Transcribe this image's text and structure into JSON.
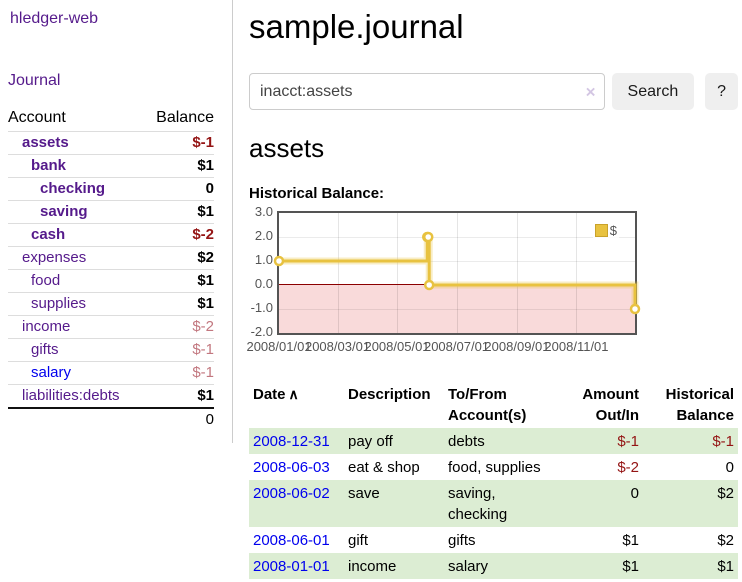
{
  "app": {
    "title": "hledger-web"
  },
  "colors": {
    "link_purple": "#551A8B",
    "link_blue": "#0000EE",
    "negative": "#941414",
    "muted_negative": "#c2777f",
    "row_green": "#dcedd3",
    "chart_series_yellow": "#E8C240",
    "chart_negative_region": "#f9dada",
    "chart_zero_line": "#8b0000"
  },
  "sidebar": {
    "nav": {
      "journal_label": "Journal"
    },
    "accounts_table": {
      "headers": {
        "account": "Account",
        "balance": "Balance"
      },
      "rows": [
        {
          "name": "assets",
          "balance": "$-1",
          "depth": 1,
          "bold": true,
          "balance_color": "negative"
        },
        {
          "name": "bank",
          "balance": "$1",
          "depth": 2,
          "bold": true,
          "balance_color": "normal"
        },
        {
          "name": "checking",
          "balance": "0",
          "depth": 3,
          "bold": true,
          "balance_color": "normal"
        },
        {
          "name": "saving",
          "balance": "$1",
          "depth": 3,
          "bold": true,
          "balance_color": "normal"
        },
        {
          "name": "cash",
          "balance": "$-2",
          "depth": 2,
          "bold": true,
          "balance_color": "negative"
        },
        {
          "name": "expenses",
          "balance": "$2",
          "depth": 1,
          "bold": false,
          "balance_color": "normal"
        },
        {
          "name": "food",
          "balance": "$1",
          "depth": 2,
          "bold": false,
          "balance_color": "normal"
        },
        {
          "name": "supplies",
          "balance": "$1",
          "depth": 2,
          "bold": false,
          "balance_color": "normal"
        },
        {
          "name": "income",
          "balance": "$-2",
          "depth": 1,
          "bold": false,
          "balance_color": "muted-negative"
        },
        {
          "name": "gifts",
          "balance": "$-1",
          "depth": 2,
          "bold": false,
          "balance_color": "muted-negative"
        },
        {
          "name": "salary",
          "balance": "$-1",
          "depth": 2,
          "bold": false,
          "balance_color": "muted-negative",
          "link_color": "blue"
        },
        {
          "name": "liabilities:debts",
          "balance": "$1",
          "depth": 1,
          "bold": false,
          "balance_color": "normal"
        }
      ],
      "total": "0"
    }
  },
  "main": {
    "title": "sample.journal",
    "search": {
      "value": "inacct:assets",
      "clear_icon": "×",
      "button_label": "Search",
      "help_label": "?"
    },
    "account_heading": "assets",
    "chart_label": "Historical Balance:"
  },
  "chart_data": {
    "type": "line",
    "style": "step",
    "title": "Historical Balance",
    "legend_position": "top-right",
    "ylim": [
      -2,
      3
    ],
    "x_range_days": 365,
    "x_ticks": [
      "2008/01/01",
      "2008/03/01",
      "2008/05/01",
      "2008/07/01",
      "2008/09/01",
      "2008/11/01"
    ],
    "y_tick_labels": [
      "3.0",
      "2.0",
      "1.0",
      "0.0",
      "-1.0",
      "-2.0"
    ],
    "series": [
      {
        "name": "$",
        "color": "#E8C240",
        "points": [
          {
            "date": "2008-01-01",
            "value": 1
          },
          {
            "date": "2008-06-01",
            "value": 2
          },
          {
            "date": "2008-06-02",
            "value": 2
          },
          {
            "date": "2008-06-03",
            "value": 0
          },
          {
            "date": "2008-12-31",
            "value": -1
          }
        ]
      }
    ]
  },
  "register_table": {
    "headers": {
      "date": "Date",
      "sort_icon": "∧",
      "description": "Description",
      "accounts": "To/From Account(s)",
      "amount": "Amount Out/In",
      "balance": "Historical Balance"
    },
    "rows": [
      {
        "date": "2008-12-31",
        "description": "pay off",
        "accounts": "debts",
        "amount": "$-1",
        "balance": "$-1",
        "amount_negative": true,
        "balance_negative": true
      },
      {
        "date": "2008-06-03",
        "description": "eat & shop",
        "accounts": "food, supplies",
        "amount": "$-2",
        "balance": "0",
        "amount_negative": true,
        "balance_negative": false
      },
      {
        "date": "2008-06-02",
        "description": "save",
        "accounts": "saving, checking",
        "amount": "0",
        "balance": "$2",
        "amount_negative": false,
        "balance_negative": false
      },
      {
        "date": "2008-06-01",
        "description": "gift",
        "accounts": "gifts",
        "amount": "$1",
        "balance": "$2",
        "amount_negative": false,
        "balance_negative": false
      },
      {
        "date": "2008-01-01",
        "description": "income",
        "accounts": "salary",
        "amount": "$1",
        "balance": "$1",
        "amount_negative": false,
        "balance_negative": false
      }
    ]
  }
}
